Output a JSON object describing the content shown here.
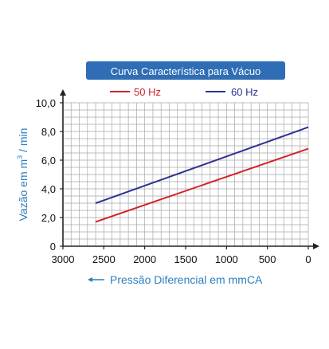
{
  "chart_data": {
    "type": "line",
    "title": "Curva Característica para Vácuo",
    "xlabel": "Pressão Diferencial em mmCA",
    "ylabel_main": "Vazão em m",
    "ylabel_sup": "3",
    "ylabel_tail": " / min",
    "x_reversed": true,
    "xlim": [
      0,
      3000
    ],
    "ylim": [
      0,
      10
    ],
    "grid": true,
    "legend_position": "top",
    "x_ticks": [
      3000,
      2500,
      2000,
      1500,
      1000,
      500,
      0
    ],
    "x_tick_labels": [
      "3000",
      "2500",
      "2000",
      "1500",
      "1000",
      "500",
      "0"
    ],
    "y_ticks": [
      0,
      2,
      4,
      6,
      8,
      10
    ],
    "y_tick_labels": [
      "0",
      "2,0",
      "4,0",
      "6,0",
      "8,0",
      "10,0"
    ],
    "series": [
      {
        "name": "50 Hz",
        "color": "#d2232a",
        "x": [
          2600,
          0
        ],
        "y": [
          1.7,
          6.8
        ]
      },
      {
        "name": "60 Hz",
        "color": "#2e3192",
        "x": [
          2600,
          0
        ],
        "y": [
          3.0,
          8.3
        ]
      }
    ],
    "colors": {
      "title_bg": "#2f6eb5",
      "title_text": "#ffffff",
      "axis_label": "#2a7fc0",
      "grid": "#a8a8a8",
      "axis": "#222222",
      "tick_text": "#111111"
    }
  }
}
